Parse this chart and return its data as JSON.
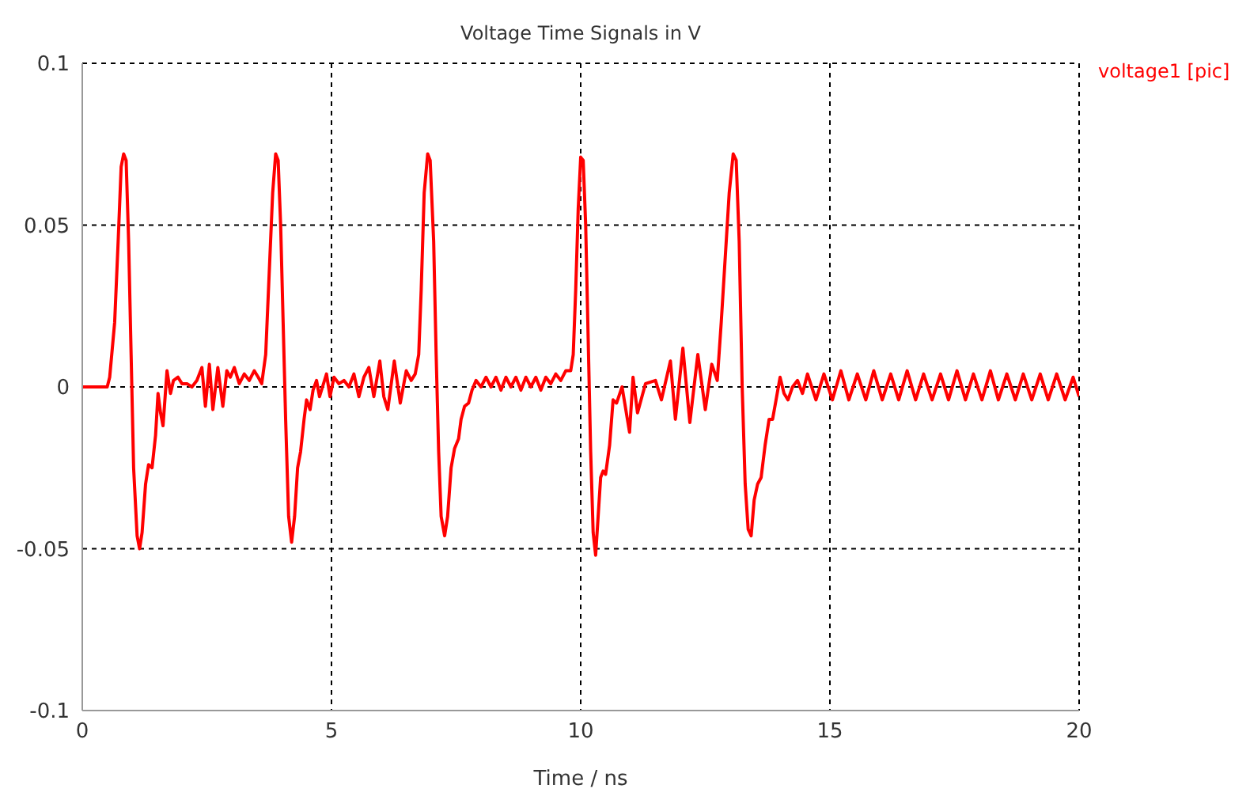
{
  "chart_data": {
    "type": "line",
    "title": "Voltage Time Signals in V",
    "xlabel": "Time / ns",
    "x": [
      0,
      0.5,
      0.55,
      0.65,
      0.72,
      0.78,
      0.83,
      0.88,
      0.93,
      0.98,
      1.03,
      1.1,
      1.15,
      1.2,
      1.27,
      1.33,
      1.4,
      1.47,
      1.52,
      1.57,
      1.62,
      1.7,
      1.77,
      1.83,
      1.92,
      2.0,
      2.1,
      2.2,
      2.3,
      2.4,
      2.47,
      2.55,
      2.62,
      2.72,
      2.82,
      2.9,
      2.97,
      3.05,
      3.15,
      3.25,
      3.35,
      3.45,
      3.53,
      3.6,
      3.68,
      3.75,
      3.82,
      3.88,
      3.93,
      3.98,
      4.03,
      4.08,
      4.14,
      4.2,
      4.26,
      4.32,
      4.38,
      4.45,
      4.5,
      4.57,
      4.63,
      4.7,
      4.76,
      4.82,
      4.9,
      4.97,
      5.05,
      5.15,
      5.25,
      5.35,
      5.45,
      5.55,
      5.65,
      5.75,
      5.85,
      5.97,
      6.05,
      6.13,
      6.26,
      6.38,
      6.5,
      6.6,
      6.68,
      6.75,
      6.8,
      6.86,
      6.93,
      6.98,
      7.05,
      7.1,
      7.15,
      7.2,
      7.27,
      7.33,
      7.4,
      7.47,
      7.55,
      7.6,
      7.67,
      7.75,
      7.82,
      7.9,
      8.0,
      8.1,
      8.2,
      8.3,
      8.4,
      8.5,
      8.6,
      8.7,
      8.8,
      8.9,
      9.0,
      9.1,
      9.2,
      9.3,
      9.4,
      9.5,
      9.6,
      9.7,
      9.8,
      9.85,
      9.9,
      9.95,
      10.0,
      10.05,
      10.1,
      10.15,
      10.2,
      10.25,
      10.3,
      10.35,
      10.4,
      10.45,
      10.5,
      10.58,
      10.65,
      10.72,
      10.83,
      10.98,
      11.05,
      11.14,
      11.3,
      11.5,
      11.62,
      11.8,
      11.9,
      12.05,
      12.19,
      12.35,
      12.5,
      12.63,
      12.74,
      12.82,
      12.9,
      12.98,
      13.06,
      13.12,
      13.18,
      13.24,
      13.3,
      13.36,
      13.42,
      13.48,
      13.55,
      13.62,
      13.7,
      13.78,
      13.85,
      13.92,
      14.0,
      14.08,
      14.16,
      14.25,
      14.35,
      14.45,
      14.55,
      14.72,
      14.88,
      15.05,
      15.22,
      15.38,
      15.55,
      15.72,
      15.88,
      16.05,
      16.22,
      16.38,
      16.55,
      16.72,
      16.88,
      17.05,
      17.22,
      17.38,
      17.55,
      17.72,
      17.88,
      18.05,
      18.22,
      18.38,
      18.55,
      18.72,
      18.88,
      19.05,
      19.22,
      19.38,
      19.55,
      19.72,
      19.88,
      20.0
    ],
    "series": [
      {
        "name": "voltage1 [pic]",
        "color": "#ff0000",
        "values": [
          0,
          0,
          0.003,
          0.02,
          0.045,
          0.068,
          0.072,
          0.07,
          0.045,
          0.01,
          -0.025,
          -0.046,
          -0.05,
          -0.045,
          -0.03,
          -0.024,
          -0.025,
          -0.015,
          -0.002,
          -0.008,
          -0.012,
          0.005,
          -0.002,
          0.002,
          0.003,
          0.001,
          0.001,
          0,
          0.002,
          0.006,
          -0.006,
          0.007,
          -0.007,
          0.006,
          -0.006,
          0.005,
          0.003,
          0.006,
          0.001,
          0.004,
          0.002,
          0.005,
          0.003,
          0.001,
          0.01,
          0.035,
          0.06,
          0.072,
          0.07,
          0.05,
          0.02,
          -0.01,
          -0.04,
          -0.048,
          -0.04,
          -0.025,
          -0.02,
          -0.01,
          -0.004,
          -0.007,
          -0.001,
          0.002,
          -0.003,
          0,
          0.004,
          -0.003,
          0.003,
          0.001,
          0.002,
          0,
          0.004,
          -0.003,
          0.003,
          0.006,
          -0.003,
          0.008,
          -0.003,
          -0.007,
          0.008,
          -0.005,
          0.005,
          0.002,
          0.004,
          0.01,
          0.03,
          0.06,
          0.072,
          0.07,
          0.045,
          0.01,
          -0.02,
          -0.04,
          -0.046,
          -0.04,
          -0.025,
          -0.019,
          -0.016,
          -0.01,
          -0.006,
          -0.005,
          -0.001,
          0.002,
          0,
          0.003,
          0,
          0.003,
          -0.001,
          0.003,
          0,
          0.003,
          -0.001,
          0.003,
          0,
          0.003,
          -0.001,
          0.003,
          0.001,
          0.004,
          0.002,
          0.005,
          0.005,
          0.01,
          0.03,
          0.055,
          0.071,
          0.07,
          0.05,
          0.015,
          -0.02,
          -0.045,
          -0.052,
          -0.04,
          -0.028,
          -0.026,
          -0.027,
          -0.018,
          -0.004,
          -0.005,
          0,
          -0.014,
          0.003,
          -0.008,
          0.001,
          0.002,
          -0.004,
          0.008,
          -0.01,
          0.012,
          -0.011,
          0.01,
          -0.007,
          0.007,
          0.002,
          0.02,
          0.04,
          0.06,
          0.072,
          0.07,
          0.045,
          0,
          -0.03,
          -0.044,
          -0.046,
          -0.035,
          -0.03,
          -0.028,
          -0.018,
          -0.01,
          -0.01,
          -0.004,
          0.003,
          -0.002,
          -0.004,
          0,
          0.002,
          -0.002,
          0.004,
          -0.004,
          0.004,
          -0.004,
          0.005,
          -0.004,
          0.004,
          -0.004,
          0.005,
          -0.004,
          0.004,
          -0.004,
          0.005,
          -0.004,
          0.004,
          -0.004,
          0.004,
          -0.004,
          0.005,
          -0.004,
          0.004,
          -0.004,
          0.005,
          -0.004,
          0.004,
          -0.004,
          0.004,
          -0.004,
          0.004,
          -0.004,
          0.004,
          -0.004,
          0.003,
          -0.003
        ]
      }
    ],
    "xlim": [
      0,
      20
    ],
    "xticks": [
      0,
      5,
      10,
      15,
      20
    ],
    "ylim": [
      -0.1,
      0.1
    ],
    "yticks": [
      -0.1,
      -0.05,
      0,
      0.05,
      0.1
    ],
    "grid": true,
    "legend": "top right",
    "marker": "none",
    "line_style": "solid"
  }
}
